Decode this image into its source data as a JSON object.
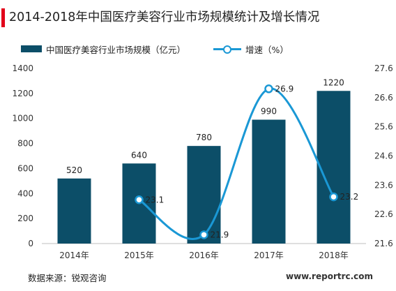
{
  "title": "2014-2018年中国医疗美容行业市场规模统计及增长情况",
  "legend": {
    "bar_label": "中国医疗美容行业市场规模（亿元）",
    "line_label": "增速（%）"
  },
  "source": "数据来源：锐观咨询",
  "site": "www.reportrc.com",
  "colors": {
    "bar": "#0c4e68",
    "line": "#1a98d5",
    "accent": "#e2001a"
  },
  "chart_data": {
    "type": "bar",
    "categories": [
      "2014年",
      "2015年",
      "2016年",
      "2017年",
      "2018年"
    ],
    "series": [
      {
        "name": "中国医疗美容行业市场规模（亿元）",
        "type": "bar",
        "axis": "left",
        "values": [
          520,
          640,
          780,
          990,
          1220
        ],
        "labels": [
          "520",
          "640",
          "780",
          "990",
          "1220"
        ]
      },
      {
        "name": "增速（%）",
        "type": "line",
        "smooth": true,
        "axis": "right",
        "values": [
          null,
          23.1,
          21.9,
          26.9,
          23.2
        ],
        "labels": [
          "",
          "23.1",
          "21.9",
          "26.9",
          "23.2"
        ]
      }
    ],
    "ylim_left": [
      0,
      1400
    ],
    "yticks_left": [
      "0",
      "200",
      "400",
      "600",
      "800",
      "1000",
      "1200",
      "1400"
    ],
    "ylim_right": [
      21.6,
      27.6
    ],
    "yticks_right": [
      "21.6",
      "22.6",
      "23.6",
      "24.6",
      "25.6",
      "26.6",
      "27.6"
    ],
    "grid": false,
    "legend_position": "top-left"
  }
}
